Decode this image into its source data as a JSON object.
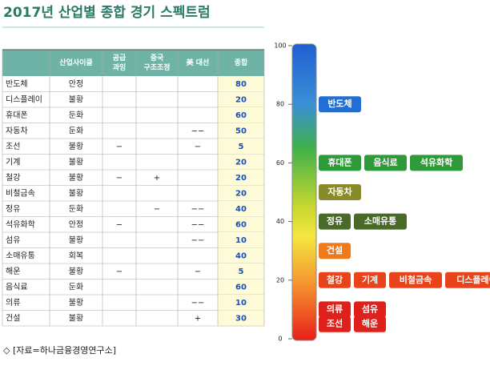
{
  "header": {
    "title": "2017년 산업별 종합 경기 스펙트럼"
  },
  "table": {
    "headers": [
      null,
      "산업사이클",
      [
        "공급",
        "과잉"
      ],
      [
        "중국",
        "구조조정"
      ],
      "美 대선",
      "종합"
    ],
    "rows": [
      [
        "반도체",
        "안정",
        null,
        null,
        null,
        80
      ],
      [
        "디스플레이",
        "불황",
        null,
        null,
        null,
        20
      ],
      [
        "휴대폰",
        "둔화",
        null,
        null,
        null,
        60
      ],
      [
        "자동차",
        "둔화",
        null,
        null,
        "−−",
        50
      ],
      [
        "조선",
        "불황",
        "−",
        null,
        "−",
        5
      ],
      [
        "기계",
        "불황",
        null,
        null,
        null,
        20
      ],
      [
        "철강",
        "불황",
        "−",
        "+",
        null,
        20
      ],
      [
        "비철금속",
        "불황",
        null,
        null,
        null,
        20
      ],
      [
        "정유",
        "둔화",
        null,
        "−",
        "−−",
        40
      ],
      [
        "석유화학",
        "안정",
        "−",
        null,
        "−−",
        60
      ],
      [
        "섬유",
        "불황",
        null,
        null,
        "−−",
        10
      ],
      [
        "소매유통",
        "회복",
        null,
        null,
        null,
        40
      ],
      [
        "해운",
        "불황",
        "−",
        null,
        "−",
        5
      ],
      [
        "음식료",
        "둔화",
        null,
        null,
        null,
        60
      ],
      [
        "의류",
        "불황",
        null,
        null,
        "−−",
        10
      ],
      [
        "건설",
        "불황",
        null,
        null,
        "+",
        30
      ]
    ]
  },
  "spectrum": {
    "ticks": [
      0,
      20,
      40,
      60,
      80,
      100
    ],
    "items": [
      {
        "label": "반도체",
        "value": 80,
        "color": "#1f6fd6"
      },
      {
        "label": "휴대폰",
        "value": 60,
        "color": "#2f9a3a"
      },
      {
        "label": "음식료",
        "value": 60,
        "color": "#2f9a3a"
      },
      {
        "label": "석유화학",
        "value": 60,
        "color": "#2f9a3a"
      },
      {
        "label": "자동차",
        "value": 50,
        "color": "#8a8a2a"
      },
      {
        "label": "정유",
        "value": 40,
        "color": "#4a6a2a"
      },
      {
        "label": "소매유통",
        "value": 40,
        "color": "#4a6a2a"
      },
      {
        "label": "건설",
        "value": 30,
        "color": "#f07a1a"
      },
      {
        "label": "철강",
        "value": 20,
        "color": "#e8431a"
      },
      {
        "label": "기계",
        "value": 20,
        "color": "#e8431a"
      },
      {
        "label": "비철금속",
        "value": 20,
        "color": "#e8431a"
      },
      {
        "label": "디스플레이",
        "value": 20,
        "color": "#e8431a"
      },
      {
        "label": "의류",
        "value": 10,
        "color": "#e0201a"
      },
      {
        "label": "섬유",
        "value": 10,
        "color": "#e0201a"
      },
      {
        "label": "조선",
        "value": 5,
        "color": "#e0201a"
      },
      {
        "label": "해운",
        "value": 5,
        "color": "#e0201a"
      }
    ]
  },
  "source": "◇ [자료=하나금융경영연구소]"
}
